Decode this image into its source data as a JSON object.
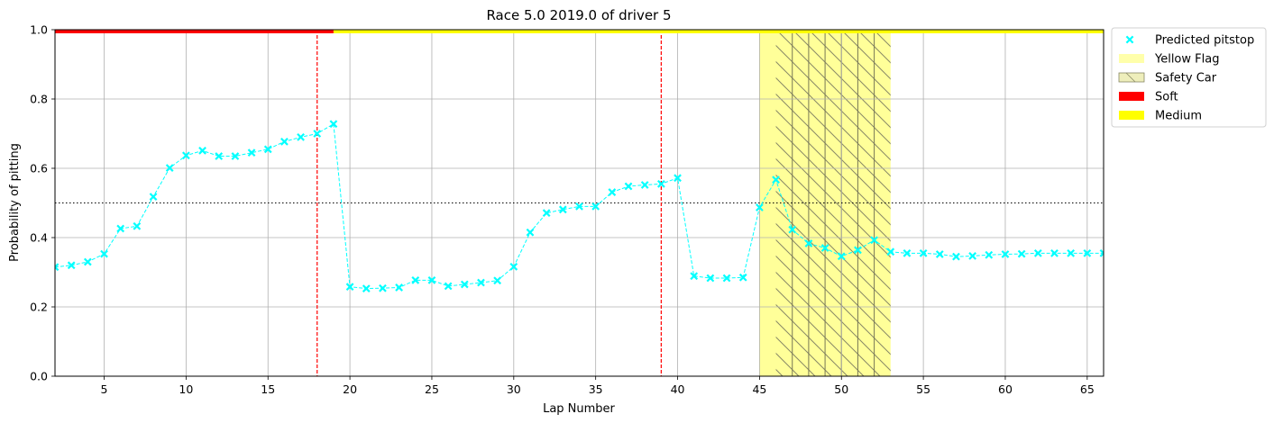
{
  "chart_data": {
    "type": "line",
    "title": "Race 5.0 2019.0 of driver 5",
    "xlabel": "Lap Number",
    "ylabel": "Probability of pitting",
    "xlim": [
      2,
      66
    ],
    "ylim": [
      0,
      1
    ],
    "xticks": [
      5,
      10,
      15,
      20,
      25,
      30,
      35,
      40,
      45,
      50,
      55,
      60,
      65
    ],
    "yticks": [
      0.0,
      0.2,
      0.4,
      0.6,
      0.8,
      1.0
    ],
    "ytick_labels": [
      "0.0",
      "0.2",
      "0.4",
      "0.6",
      "0.8",
      "1.0"
    ],
    "grid": true,
    "legend_position": "outside-top-right",
    "threshold": 0.5,
    "series": [
      {
        "name": "Predicted pitstop",
        "color": "#00ffff",
        "marker": "x",
        "x": [
          2,
          3,
          4,
          5,
          6,
          7,
          8,
          9,
          10,
          11,
          12,
          13,
          14,
          15,
          16,
          17,
          18,
          19,
          20,
          21,
          22,
          23,
          24,
          25,
          26,
          27,
          28,
          29,
          30,
          31,
          32,
          33,
          34,
          35,
          36,
          37,
          38,
          39,
          40,
          41,
          42,
          43,
          44,
          45,
          46,
          47,
          48,
          49,
          50,
          51,
          52,
          53,
          54,
          55,
          56,
          57,
          58,
          59,
          60,
          61,
          62,
          63,
          64,
          65,
          66
        ],
        "y": [
          0.315,
          0.32,
          0.33,
          0.353,
          0.426,
          0.433,
          0.518,
          0.601,
          0.637,
          0.651,
          0.635,
          0.635,
          0.645,
          0.655,
          0.677,
          0.69,
          0.7,
          0.728,
          0.258,
          0.253,
          0.254,
          0.256,
          0.277,
          0.277,
          0.26,
          0.265,
          0.27,
          0.276,
          0.316,
          0.415,
          0.471,
          0.481,
          0.49,
          0.49,
          0.531,
          0.548,
          0.552,
          0.555,
          0.572,
          0.289,
          0.283,
          0.283,
          0.285,
          0.487,
          0.567,
          0.423,
          0.383,
          0.37,
          0.346,
          0.364,
          0.393,
          0.359,
          0.355,
          0.355,
          0.352,
          0.345,
          0.347,
          0.35,
          0.352,
          0.353,
          0.355,
          0.355,
          0.355,
          0.355,
          0.355
        ]
      }
    ],
    "pitstop_laps": [
      18,
      39
    ],
    "pitstop_color": "#ff0000",
    "yellow_flag": {
      "name": "Yellow Flag",
      "color": "#ffff99",
      "ranges": [
        [
          45,
          53
        ]
      ]
    },
    "safety_car": {
      "name": "Safety Car",
      "ranges": [
        [
          46,
          53
        ]
      ]
    },
    "tyre_compounds": [
      {
        "name": "Soft",
        "color": "#ff0000",
        "laps": [
          2,
          19
        ]
      },
      {
        "name": "Medium",
        "color": "#ffff00",
        "laps": [
          19,
          66
        ]
      }
    ],
    "legend": [
      {
        "label": "Predicted pitstop",
        "kind": "marker",
        "color": "#00ffff"
      },
      {
        "label": "Yellow Flag",
        "kind": "patch",
        "color": "#ffffaa"
      },
      {
        "label": "Safety Car",
        "kind": "hatch",
        "color": "#eeeebb"
      },
      {
        "label": "Soft",
        "kind": "patch",
        "color": "#ff0000"
      },
      {
        "label": "Medium",
        "kind": "patch",
        "color": "#ffff00"
      }
    ]
  }
}
